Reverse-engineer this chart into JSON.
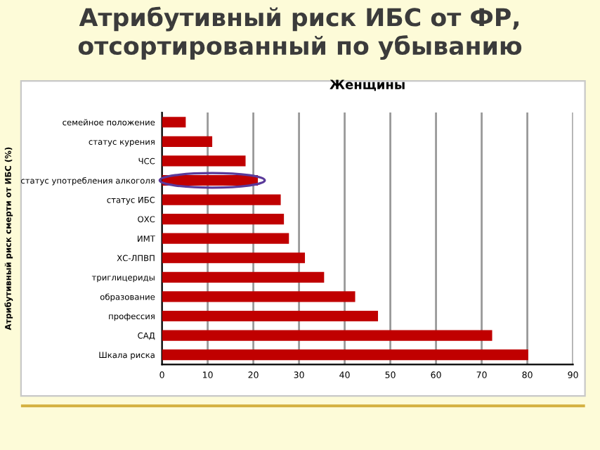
{
  "chart_data": {
    "type": "bar",
    "orientation": "horizontal",
    "title": "Атрибутивный риск ИБС от ФР, отсортированный по убыванию",
    "subtitle": "Женщины",
    "ylabel": "Атрибутивный риск смерти от ИБС (%)",
    "categories": [
      "семейное положение",
      "статус курения",
      "ЧСС",
      "статус употребления алкоголя",
      "статус ИБС",
      "ОХС",
      "ИМТ",
      "ХС-ЛПВП",
      "триглицериды",
      "образование",
      "профессия",
      "САД",
      "Шкала риска"
    ],
    "values": [
      5.2,
      11,
      18.3,
      21,
      26,
      26.7,
      27.8,
      31.3,
      35.5,
      42.3,
      47.3,
      72.3,
      80.2
    ],
    "color": "#c00000",
    "xlim": [
      0,
      90
    ],
    "xticks": [
      0,
      10,
      20,
      30,
      40,
      50,
      60,
      70,
      80,
      90
    ],
    "grid": "x"
  }
}
